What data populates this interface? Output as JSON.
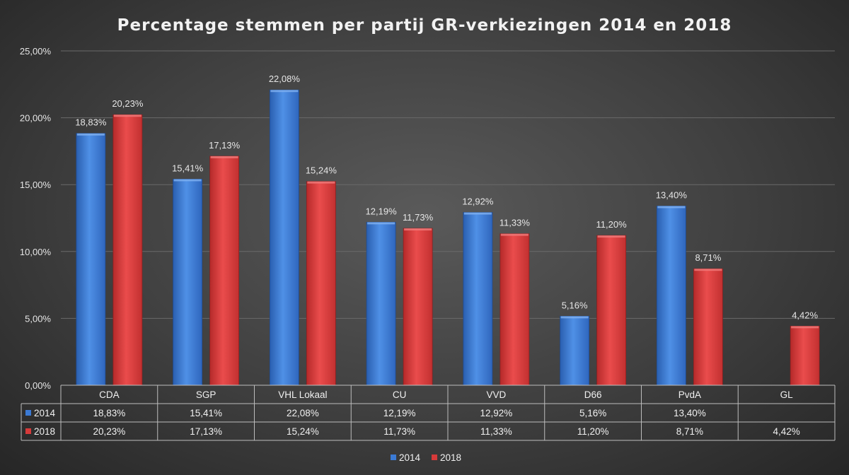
{
  "chart_data": {
    "type": "bar",
    "title": "Percentage stemmen per partij GR-verkiezingen 2014 en 2018",
    "categories": [
      "CDA",
      "SGP",
      "VHL Lokaal",
      "CU",
      "VVD",
      "D66",
      "PvdA",
      "GL"
    ],
    "series": [
      {
        "name": "2014",
        "color": "#3b7ad4",
        "values": [
          18.83,
          15.41,
          22.08,
          12.19,
          12.92,
          5.16,
          13.4,
          null
        ],
        "labels": [
          "18,83%",
          "15,41%",
          "22,08%",
          "12,19%",
          "12,92%",
          "5,16%",
          "13,40%",
          ""
        ]
      },
      {
        "name": "2018",
        "color": "#d63a3a",
        "values": [
          20.23,
          17.13,
          15.24,
          11.73,
          11.33,
          11.2,
          8.71,
          4.42
        ],
        "labels": [
          "20,23%",
          "17,13%",
          "15,24%",
          "11,73%",
          "11,33%",
          "11,20%",
          "8,71%",
          "4,42%"
        ]
      }
    ],
    "ylim": [
      0,
      25
    ],
    "yticks": [
      0,
      5,
      10,
      15,
      20,
      25
    ],
    "ytick_labels": [
      "0,00%",
      "5,00%",
      "10,00%",
      "15,00%",
      "20,00%",
      "25,00%"
    ],
    "grid": true,
    "legend": "bottom-center",
    "data_table": true
  }
}
